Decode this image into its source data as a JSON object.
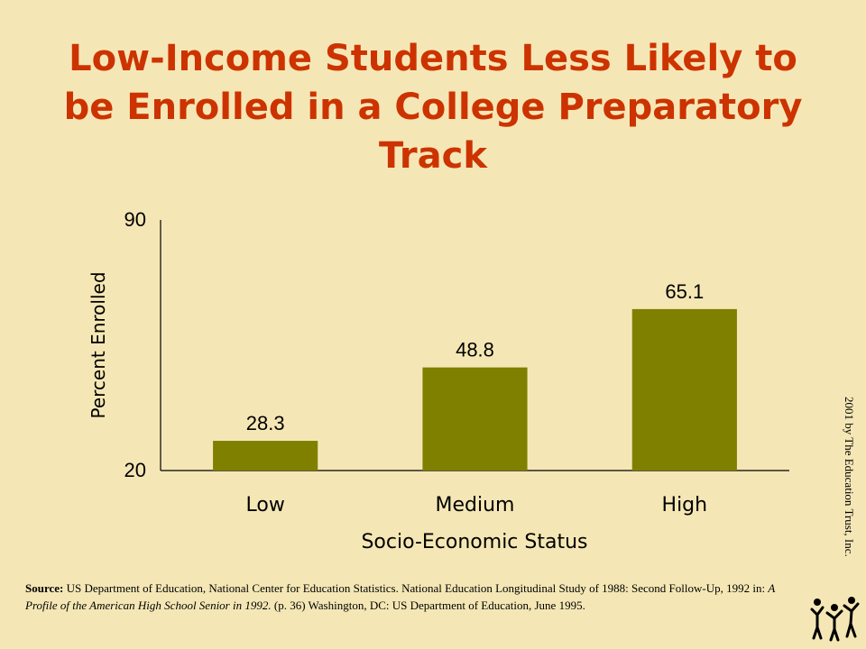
{
  "title": "Low-Income Students Less Likely to be Enrolled in a College Preparatory Track",
  "chart_data": {
    "type": "bar",
    "categories": [
      "Low",
      "Medium",
      "High"
    ],
    "values": [
      28.3,
      48.8,
      65.1
    ],
    "data_labels": [
      "28.3",
      "48.8",
      "65.1"
    ],
    "xlabel": "Socio-Economic Status",
    "ylabel": "Percent Enrolled",
    "ylim": [
      20,
      90
    ],
    "yticks": [
      "90",
      "20"
    ],
    "bar_color": "#808000",
    "grid": false,
    "legend": "none"
  },
  "source": {
    "label": "Source:",
    "text_before": " US Department of Education, National Center for Education Statistics. National Education Longitudinal Study of 1988: Second Follow-Up, 1992 in: ",
    "publication": "A Profile of the American High School Senior in 1992.",
    "text_after": " (p. 36) Washington, DC: US Department of Education, June 1995."
  },
  "copyright": "2001 by The Education Trust, Inc.",
  "colors": {
    "background": "#f5e7b5",
    "title": "#cc3300",
    "bars": "#808000"
  },
  "logo_icon": "education-trust-logo-icon"
}
